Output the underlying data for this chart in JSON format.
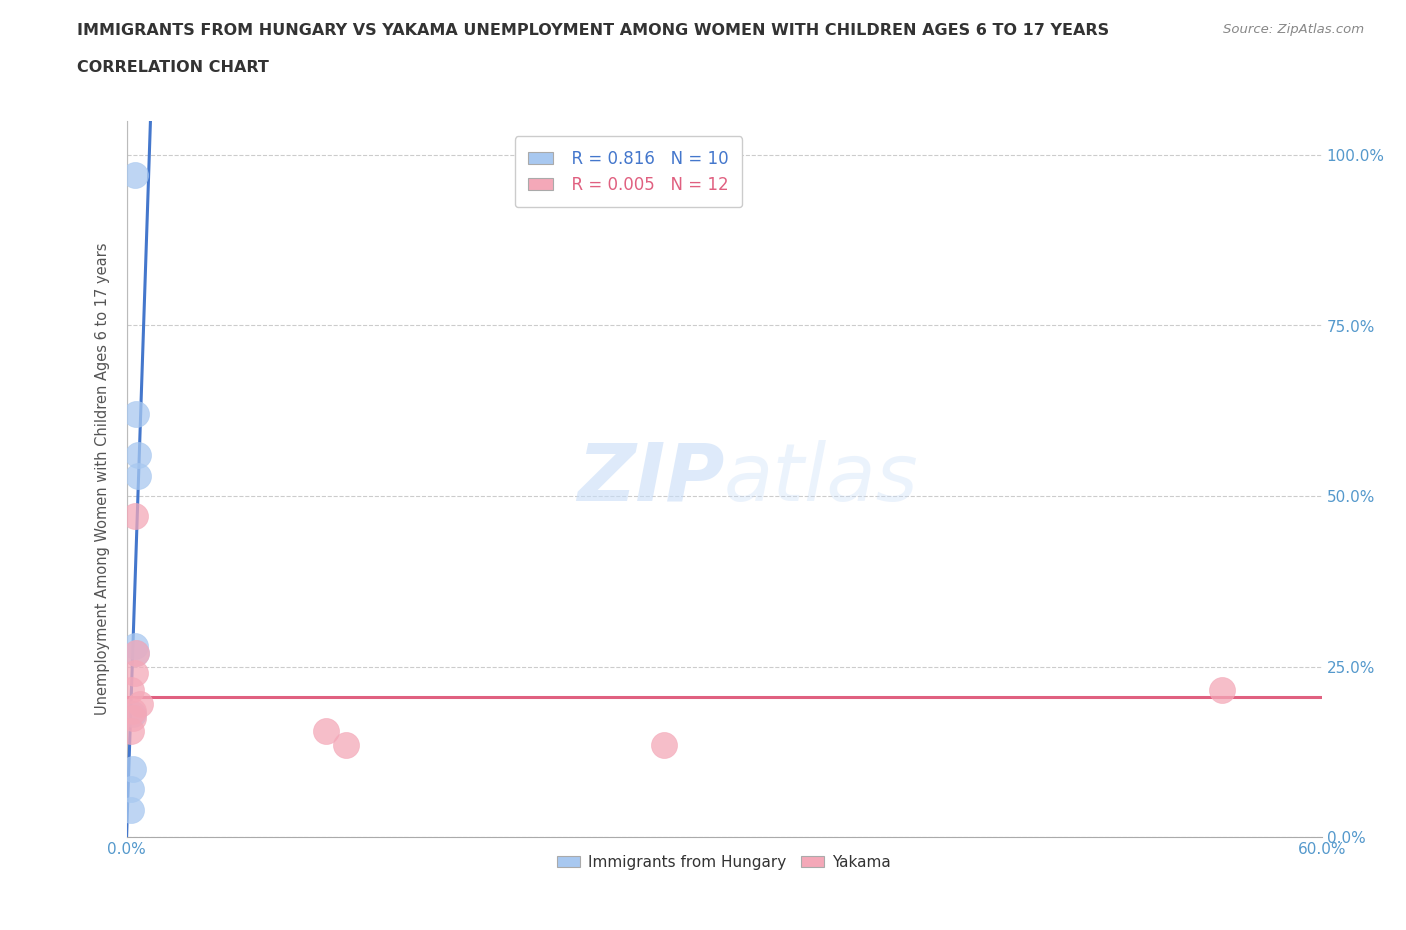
{
  "title_line1": "IMMIGRANTS FROM HUNGARY VS YAKAMA UNEMPLOYMENT AMONG WOMEN WITH CHILDREN AGES 6 TO 17 YEARS",
  "title_line2": "CORRELATION CHART",
  "source_text": "Source: ZipAtlas.com",
  "ylabel": "Unemployment Among Women with Children Ages 6 to 17 years",
  "xlim": [
    0.0,
    0.6
  ],
  "ylim": [
    0.0,
    1.05
  ],
  "xticks": [
    0.0,
    0.06,
    0.12,
    0.18,
    0.24,
    0.3,
    0.36,
    0.42,
    0.48,
    0.54,
    0.6
  ],
  "xticklabels": [
    "0.0%",
    "",
    "",
    "",
    "",
    "",
    "",
    "",
    "",
    "",
    "60.0%"
  ],
  "ytick_positions": [
    0.0,
    0.25,
    0.5,
    0.75,
    1.0
  ],
  "ytick_labels": [
    "0.0%",
    "25.0%",
    "50.0%",
    "75.0%",
    "100.0%"
  ],
  "watermark_zip": "ZIP",
  "watermark_atlas": "atlas",
  "blue_R": "0.816",
  "blue_N": "10",
  "pink_R": "0.005",
  "pink_N": "12",
  "blue_color": "#A8C8F0",
  "pink_color": "#F4A8B8",
  "blue_line_color": "#4477CC",
  "pink_line_color": "#E06080",
  "background_color": "#FFFFFF",
  "grid_color": "#CCCCCC",
  "title_color": "#333333",
  "axis_label_color": "#555555",
  "tick_label_color": "#5599CC",
  "legend_series_label_color": "#333333",
  "blue_points": [
    [
      0.004,
      0.97
    ],
    [
      0.005,
      0.62
    ],
    [
      0.006,
      0.56
    ],
    [
      0.006,
      0.53
    ],
    [
      0.004,
      0.28
    ],
    [
      0.005,
      0.27
    ],
    [
      0.003,
      0.18
    ],
    [
      0.003,
      0.1
    ],
    [
      0.002,
      0.07
    ],
    [
      0.002,
      0.04
    ]
  ],
  "pink_points": [
    [
      0.004,
      0.47
    ],
    [
      0.005,
      0.27
    ],
    [
      0.004,
      0.24
    ],
    [
      0.002,
      0.215
    ],
    [
      0.007,
      0.195
    ],
    [
      0.003,
      0.185
    ],
    [
      0.003,
      0.175
    ],
    [
      0.002,
      0.155
    ],
    [
      0.1,
      0.155
    ],
    [
      0.11,
      0.135
    ],
    [
      0.27,
      0.135
    ],
    [
      0.55,
      0.215
    ]
  ],
  "blue_line_x": [
    0.0,
    0.012
  ],
  "blue_line_y": [
    0.0,
    1.05
  ],
  "pink_line_y": 0.205,
  "legend_series": [
    {
      "label": "Immigrants from Hungary",
      "color": "#A8C8F0"
    },
    {
      "label": "Yakama",
      "color": "#F4A8B8"
    }
  ]
}
